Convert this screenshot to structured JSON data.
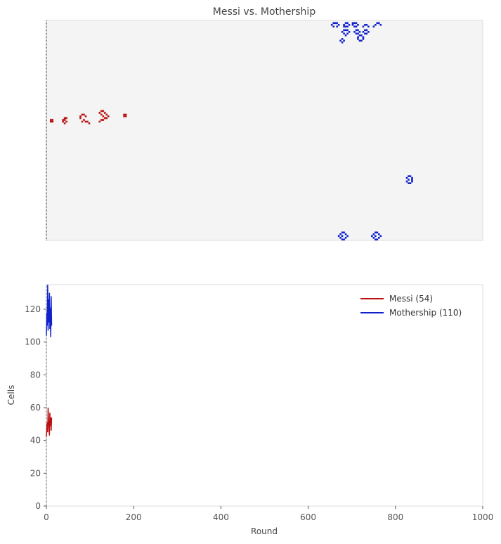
{
  "figure_title": "Messi vs. Mothership",
  "colors": {
    "messi": "#bb1111",
    "mothership": "#1122cc",
    "board_bg": "#f4f4f4",
    "frame": "#dddddd"
  },
  "board": {
    "cols": 250,
    "rows": 125,
    "messi_cells": [
      [
        2,
        56
      ],
      [
        3,
        56
      ],
      [
        2,
        57
      ],
      [
        3,
        57
      ],
      [
        10,
        55
      ],
      [
        11,
        55
      ],
      [
        9,
        56
      ],
      [
        10,
        56
      ],
      [
        9,
        57
      ],
      [
        11,
        57
      ],
      [
        10,
        58
      ],
      [
        20,
        53
      ],
      [
        21,
        53
      ],
      [
        19,
        54
      ],
      [
        22,
        54
      ],
      [
        19,
        55
      ],
      [
        21,
        56
      ],
      [
        20,
        57
      ],
      [
        22,
        57
      ],
      [
        23,
        57
      ],
      [
        24,
        58
      ],
      [
        31,
        51
      ],
      [
        32,
        51
      ],
      [
        30,
        52
      ],
      [
        33,
        52
      ],
      [
        31,
        53
      ],
      [
        34,
        53
      ],
      [
        32,
        54
      ],
      [
        35,
        54
      ],
      [
        33,
        55
      ],
      [
        34,
        55
      ],
      [
        31,
        56
      ],
      [
        32,
        56
      ],
      [
        30,
        57
      ],
      [
        44,
        53
      ],
      [
        45,
        53
      ],
      [
        44,
        54
      ],
      [
        45,
        54
      ]
    ],
    "mothership_cells": [
      [
        164,
        1
      ],
      [
        165,
        1
      ],
      [
        166,
        1
      ],
      [
        171,
        1
      ],
      [
        172,
        1
      ],
      [
        175,
        1
      ],
      [
        176,
        1
      ],
      [
        177,
        1
      ],
      [
        189,
        1
      ],
      [
        190,
        1
      ],
      [
        163,
        2
      ],
      [
        167,
        2
      ],
      [
        170,
        2
      ],
      [
        173,
        2
      ],
      [
        175,
        2
      ],
      [
        178,
        2
      ],
      [
        182,
        2
      ],
      [
        183,
        2
      ],
      [
        188,
        2
      ],
      [
        191,
        2
      ],
      [
        164,
        3
      ],
      [
        166,
        3
      ],
      [
        170,
        3
      ],
      [
        171,
        3
      ],
      [
        172,
        3
      ],
      [
        176,
        3
      ],
      [
        177,
        3
      ],
      [
        181,
        3
      ],
      [
        184,
        3
      ],
      [
        187,
        3
      ],
      [
        170,
        5
      ],
      [
        171,
        5
      ],
      [
        172,
        5
      ],
      [
        177,
        5
      ],
      [
        178,
        5
      ],
      [
        182,
        5
      ],
      [
        183,
        5
      ],
      [
        169,
        6
      ],
      [
        173,
        6
      ],
      [
        176,
        6
      ],
      [
        179,
        6
      ],
      [
        181,
        6
      ],
      [
        184,
        6
      ],
      [
        170,
        7
      ],
      [
        172,
        7
      ],
      [
        177,
        7
      ],
      [
        178,
        7
      ],
      [
        182,
        7
      ],
      [
        183,
        7
      ],
      [
        171,
        8
      ],
      [
        179,
        8
      ],
      [
        180,
        8
      ],
      [
        178,
        9
      ],
      [
        181,
        9
      ],
      [
        169,
        10
      ],
      [
        178,
        10
      ],
      [
        181,
        10
      ],
      [
        168,
        11
      ],
      [
        170,
        11
      ],
      [
        179,
        11
      ],
      [
        180,
        11
      ],
      [
        169,
        12
      ],
      [
        207,
        88
      ],
      [
        208,
        88
      ],
      [
        206,
        89
      ],
      [
        209,
        89
      ],
      [
        207,
        90
      ],
      [
        209,
        90
      ],
      [
        206,
        91
      ],
      [
        209,
        91
      ],
      [
        207,
        92
      ],
      [
        208,
        92
      ],
      [
        169,
        120
      ],
      [
        170,
        120
      ],
      [
        188,
        120
      ],
      [
        189,
        120
      ],
      [
        168,
        121
      ],
      [
        171,
        121
      ],
      [
        187,
        121
      ],
      [
        190,
        121
      ],
      [
        167,
        122
      ],
      [
        169,
        122
      ],
      [
        172,
        122
      ],
      [
        186,
        122
      ],
      [
        188,
        122
      ],
      [
        191,
        122
      ],
      [
        168,
        123
      ],
      [
        171,
        123
      ],
      [
        187,
        123
      ],
      [
        190,
        123
      ],
      [
        169,
        124
      ],
      [
        170,
        124
      ],
      [
        188,
        124
      ],
      [
        189,
        124
      ]
    ]
  },
  "chart_data": {
    "type": "line",
    "title": "",
    "xlabel": "Round",
    "ylabel": "Cells",
    "xlim": [
      0,
      1000
    ],
    "ylim": [
      0,
      135
    ],
    "xticks": [
      "0",
      "200",
      "400",
      "600",
      "800",
      "1000"
    ],
    "yticks": [
      "0",
      "20",
      "40",
      "60",
      "80",
      "100",
      "120"
    ],
    "legend_position": "top-right",
    "series": [
      {
        "name": "Messi (54)",
        "color": "#bb1111",
        "x": [
          0,
          1,
          2,
          3,
          4,
          5,
          6,
          7,
          8,
          9,
          10,
          11,
          12
        ],
        "y": [
          42,
          47,
          51,
          45,
          60,
          52,
          48,
          43,
          57,
          49,
          54,
          46,
          54
        ]
      },
      {
        "name": "Mothership (110)",
        "color": "#1122cc",
        "x": [
          0,
          1,
          2,
          3,
          4,
          5,
          6,
          7,
          8,
          9,
          10,
          11,
          12
        ],
        "y": [
          104,
          118,
          110,
          135,
          107,
          126,
          112,
          130,
          108,
          121,
          103,
          128,
          110
        ]
      }
    ]
  }
}
